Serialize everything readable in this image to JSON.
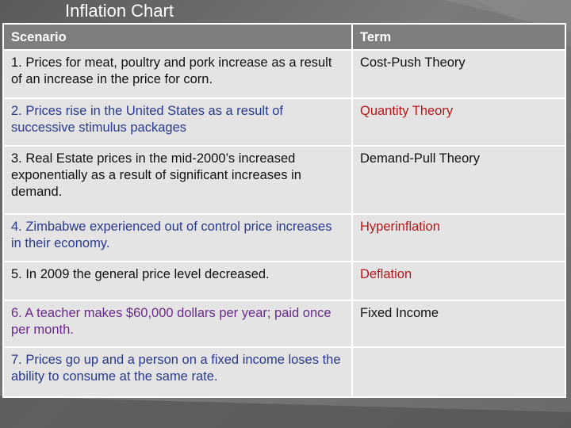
{
  "title": "Inflation Chart",
  "headers": {
    "scenario": "Scenario",
    "term": "Term"
  },
  "rows": [
    {
      "scenario": "1. Prices for meat, poultry and pork increase as a result of an increase in the price for corn.",
      "term": "Cost-Push Theory",
      "scenario_color": "#111111",
      "term_color": "#111111"
    },
    {
      "scenario": "2. Prices rise in the United States as a result of successive stimulus packages",
      "term": "Quantity Theory",
      "scenario_color": "#2a3a8f",
      "term_color": "#b8171a"
    },
    {
      "scenario": "3. Real Estate prices in the mid-2000’s increased exponentially as a result of significant increases in demand.",
      "term": "Demand-Pull Theory",
      "scenario_color": "#111111",
      "term_color": "#111111"
    },
    {
      "scenario": "4. Zimbabwe experienced out of control price increases in their economy.",
      "term": "Hyperinflation",
      "scenario_color": "#2a3a8f",
      "term_color": "#b8171a"
    },
    {
      "scenario": "5. In 2009 the general price level decreased.",
      "term": "Deflation",
      "scenario_color": "#111111",
      "term_color": "#b8171a"
    },
    {
      "scenario": "6. A teacher makes $60,000 dollars per year; paid once per month.",
      "term": "Fixed Income",
      "scenario_color": "#6a2a8a",
      "term_color": "#111111"
    },
    {
      "scenario": "7. Prices go up and a person on a fixed income loses the ability to consume at the same rate.",
      "term": "",
      "scenario_color": "#2a3a8f",
      "term_color": "#111111"
    }
  ]
}
